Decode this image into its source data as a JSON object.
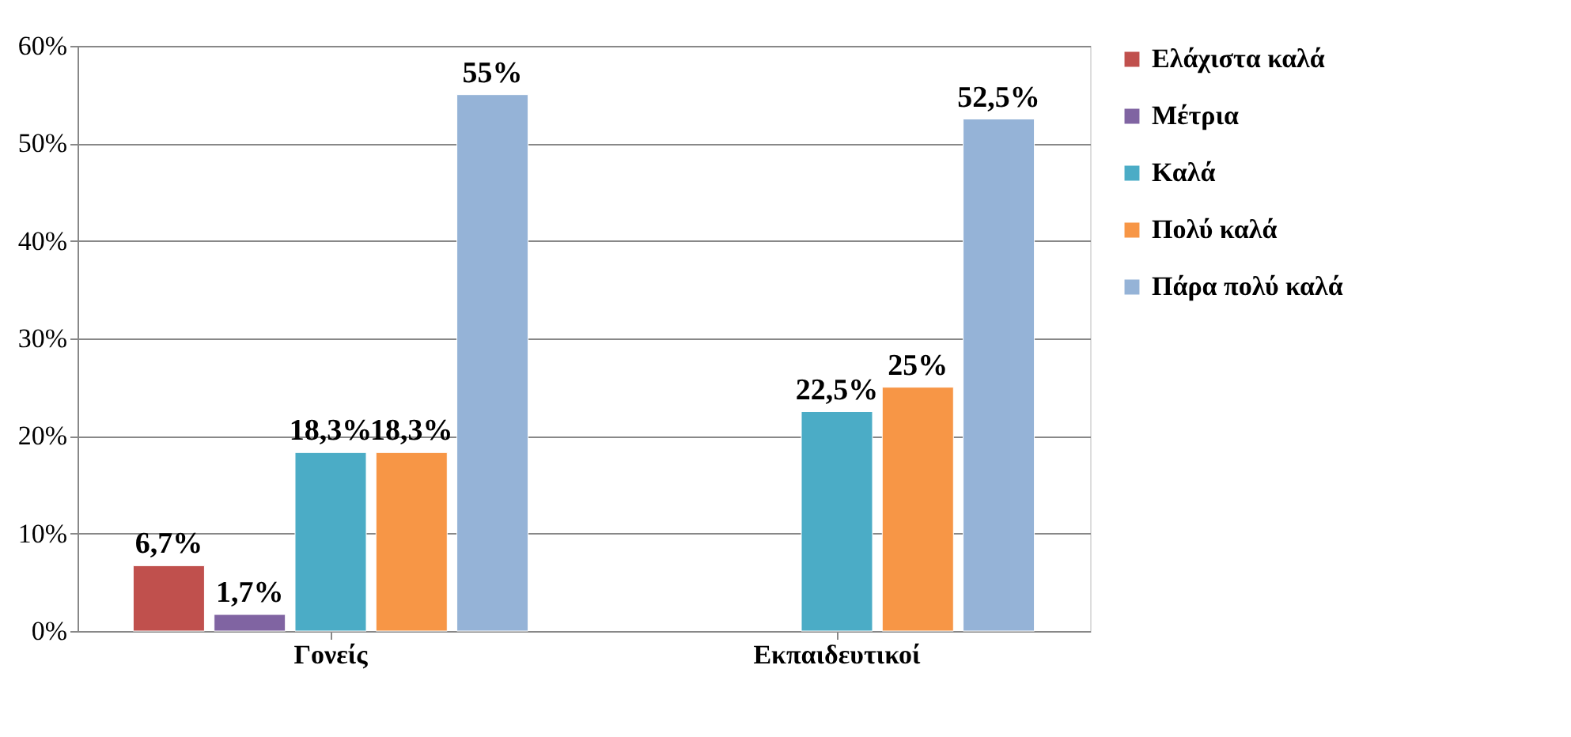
{
  "chart_data": {
    "type": "bar",
    "categories": [
      "Γονείς",
      "Εκπαιδευτικοί"
    ],
    "series": [
      {
        "name": "Ελάχιστα καλά",
        "color": "#c0504d",
        "values": [
          6.7,
          null
        ],
        "value_labels": [
          "6,7%",
          null
        ]
      },
      {
        "name": "Μέτρια",
        "color": "#8064a2",
        "values": [
          1.7,
          null
        ],
        "value_labels": [
          "1,7%",
          null
        ]
      },
      {
        "name": "Καλά",
        "color": "#4bacc6",
        "values": [
          18.3,
          22.5
        ],
        "value_labels": [
          "18,3%",
          "22,5%"
        ]
      },
      {
        "name": "Πολύ καλά",
        "color": "#f79646",
        "values": [
          18.3,
          25
        ],
        "value_labels": [
          "18,3%",
          "25%"
        ]
      },
      {
        "name": "Πάρα πολύ καλά",
        "color": "#95b3d7",
        "values": [
          55,
          52.5
        ],
        "value_labels": [
          "55%",
          "52,5%"
        ]
      }
    ],
    "ylim": [
      0,
      60
    ],
    "yticks": [
      {
        "value": 0,
        "label": "0%"
      },
      {
        "value": 10,
        "label": "10%"
      },
      {
        "value": 20,
        "label": "20%"
      },
      {
        "value": 30,
        "label": "30%"
      },
      {
        "value": 40,
        "label": "40%"
      },
      {
        "value": 50,
        "label": "50%"
      },
      {
        "value": 60,
        "label": "60%"
      }
    ],
    "grid": "y",
    "legend": "right"
  }
}
